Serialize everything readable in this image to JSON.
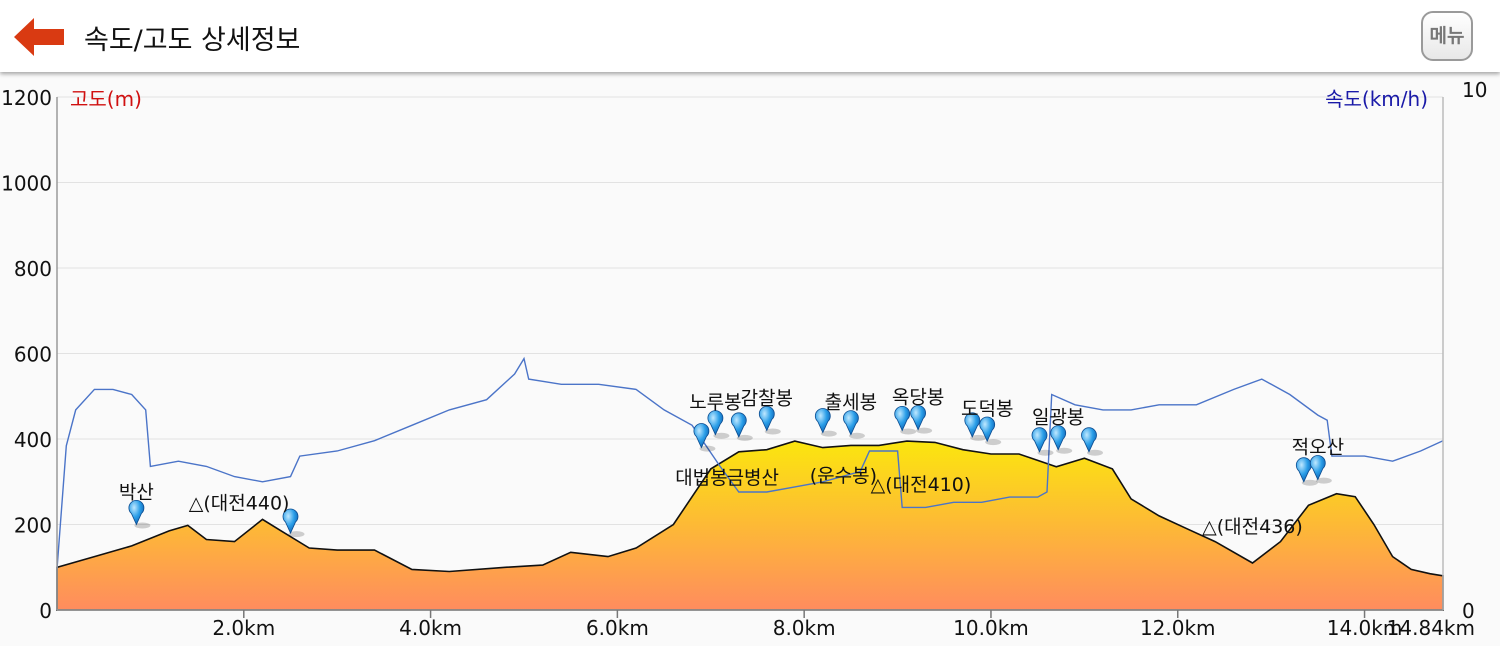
{
  "header": {
    "title": "속도/고도 상세정보",
    "menu_label": "메뉴",
    "back_icon": "left-arrow-icon",
    "accent": "#d93a12"
  },
  "chart_data": {
    "type": "area",
    "xlabel": "",
    "x_unit": "km",
    "x_max": 14.84,
    "x_ticks": [
      "2.0km",
      "4.0km",
      "6.0km",
      "8.0km",
      "10.0km",
      "12.0km",
      "14.0km",
      "14.84km"
    ],
    "left_axis": {
      "label": "고도(m)",
      "range": [
        0,
        1200
      ],
      "ticks": [
        "1200",
        "1000",
        "800",
        "600",
        "400",
        "200",
        "0"
      ],
      "color": "#d01010"
    },
    "right_axis": {
      "label": "속도(km/h)",
      "range": [
        0,
        10
      ],
      "ticks": [
        "10",
        "0"
      ],
      "color": "#1a1aa8"
    },
    "series": [
      {
        "kind": "elevation",
        "x": [
          0,
          0.4,
          0.8,
          1.2,
          1.4,
          1.6,
          1.9,
          2.2,
          2.4,
          2.7,
          3.0,
          3.4,
          3.8,
          4.2,
          4.8,
          5.2,
          5.5,
          5.9,
          6.2,
          6.6,
          7.0,
          7.3,
          7.6,
          7.9,
          8.2,
          8.5,
          8.8,
          9.1,
          9.4,
          9.7,
          10.0,
          10.3,
          10.5,
          10.7,
          11.0,
          11.3,
          11.5,
          11.8,
          12.1,
          12.4,
          12.8,
          13.1,
          13.4,
          13.7,
          13.9,
          14.1,
          14.3,
          14.5,
          14.7,
          14.84
        ],
        "values": [
          100,
          125,
          150,
          185,
          198,
          165,
          160,
          212,
          185,
          145,
          140,
          140,
          95,
          90,
          100,
          105,
          135,
          125,
          145,
          200,
          330,
          370,
          375,
          395,
          380,
          385,
          385,
          395,
          392,
          375,
          365,
          365,
          350,
          335,
          355,
          330,
          260,
          220,
          190,
          160,
          110,
          160,
          245,
          272,
          265,
          200,
          125,
          95,
          85,
          80
        ]
      },
      {
        "kind": "speed",
        "x": [
          0,
          0.1,
          0.2,
          0.4,
          0.6,
          0.8,
          0.95,
          1.0,
          1.3,
          1.6,
          1.9,
          2.2,
          2.5,
          2.6,
          3.0,
          3.4,
          3.8,
          4.2,
          4.6,
          4.9,
          5.0,
          5.05,
          5.4,
          5.8,
          6.2,
          6.5,
          6.8,
          7.1,
          7.3,
          7.6,
          7.9,
          8.2,
          8.6,
          8.7,
          9.0,
          9.05,
          9.3,
          9.6,
          9.9,
          10.2,
          10.5,
          10.6,
          10.65,
          10.9,
          11.2,
          11.5,
          11.8,
          12.2,
          12.6,
          12.9,
          13.2,
          13.5,
          13.6,
          13.65,
          14.0,
          14.3,
          14.6,
          14.84
        ],
        "values": [
          0.8,
          3.2,
          3.9,
          4.3,
          4.3,
          4.2,
          3.9,
          2.8,
          2.9,
          2.8,
          2.6,
          2.5,
          2.6,
          3.0,
          3.1,
          3.3,
          3.6,
          3.9,
          4.1,
          4.6,
          4.9,
          4.5,
          4.4,
          4.4,
          4.3,
          3.9,
          3.6,
          2.8,
          2.3,
          2.3,
          2.4,
          2.5,
          2.7,
          3.1,
          3.1,
          2.0,
          2.0,
          2.1,
          2.1,
          2.2,
          2.2,
          2.3,
          4.2,
          4.0,
          3.9,
          3.9,
          4.0,
          4.0,
          4.3,
          4.5,
          4.2,
          3.8,
          3.7,
          3.0,
          3.0,
          2.9,
          3.1,
          3.3
        ]
      }
    ],
    "waypoints": [
      {
        "x": 0.85,
        "elev": 200,
        "label": "박산"
      },
      {
        "x": 2.5,
        "elev": 180,
        "label": ""
      },
      {
        "x": 6.9,
        "elev": 380,
        "label": ""
      },
      {
        "x": 7.05,
        "elev": 410,
        "label": "노루봉"
      },
      {
        "x": 7.3,
        "elev": 405,
        "label": ""
      },
      {
        "x": 7.6,
        "elev": 420,
        "label": "감찰봉"
      },
      {
        "x": 8.2,
        "elev": 415,
        "label": ""
      },
      {
        "x": 8.5,
        "elev": 410,
        "label": "출세봉"
      },
      {
        "x": 9.05,
        "elev": 420,
        "label": ""
      },
      {
        "x": 9.22,
        "elev": 422,
        "label": "옥당봉"
      },
      {
        "x": 9.8,
        "elev": 405,
        "label": ""
      },
      {
        "x": 9.96,
        "elev": 395,
        "label": "도덕봉"
      },
      {
        "x": 10.52,
        "elev": 370,
        "label": ""
      },
      {
        "x": 10.72,
        "elev": 375,
        "label": "일광봉"
      },
      {
        "x": 11.05,
        "elev": 370,
        "label": ""
      },
      {
        "x": 13.35,
        "elev": 300,
        "label": ""
      },
      {
        "x": 13.5,
        "elev": 305,
        "label": "적오산"
      }
    ],
    "annotations": [
      {
        "x": 1.95,
        "elev": 235,
        "label": "△(대전440)"
      },
      {
        "x": 6.9,
        "elev": 295,
        "label": "대법봉"
      },
      {
        "x": 7.45,
        "elev": 295,
        "label": "금병산"
      },
      {
        "x": 8.42,
        "elev": 300,
        "label": "(운수봉)"
      },
      {
        "x": 9.25,
        "elev": 278,
        "label": "△(대전410)"
      },
      {
        "x": 12.8,
        "elev": 180,
        "label": "△(대전436)"
      }
    ],
    "grid": true,
    "fill_gradient": [
      "#fbe60e",
      "#ff8c5e"
    ]
  }
}
